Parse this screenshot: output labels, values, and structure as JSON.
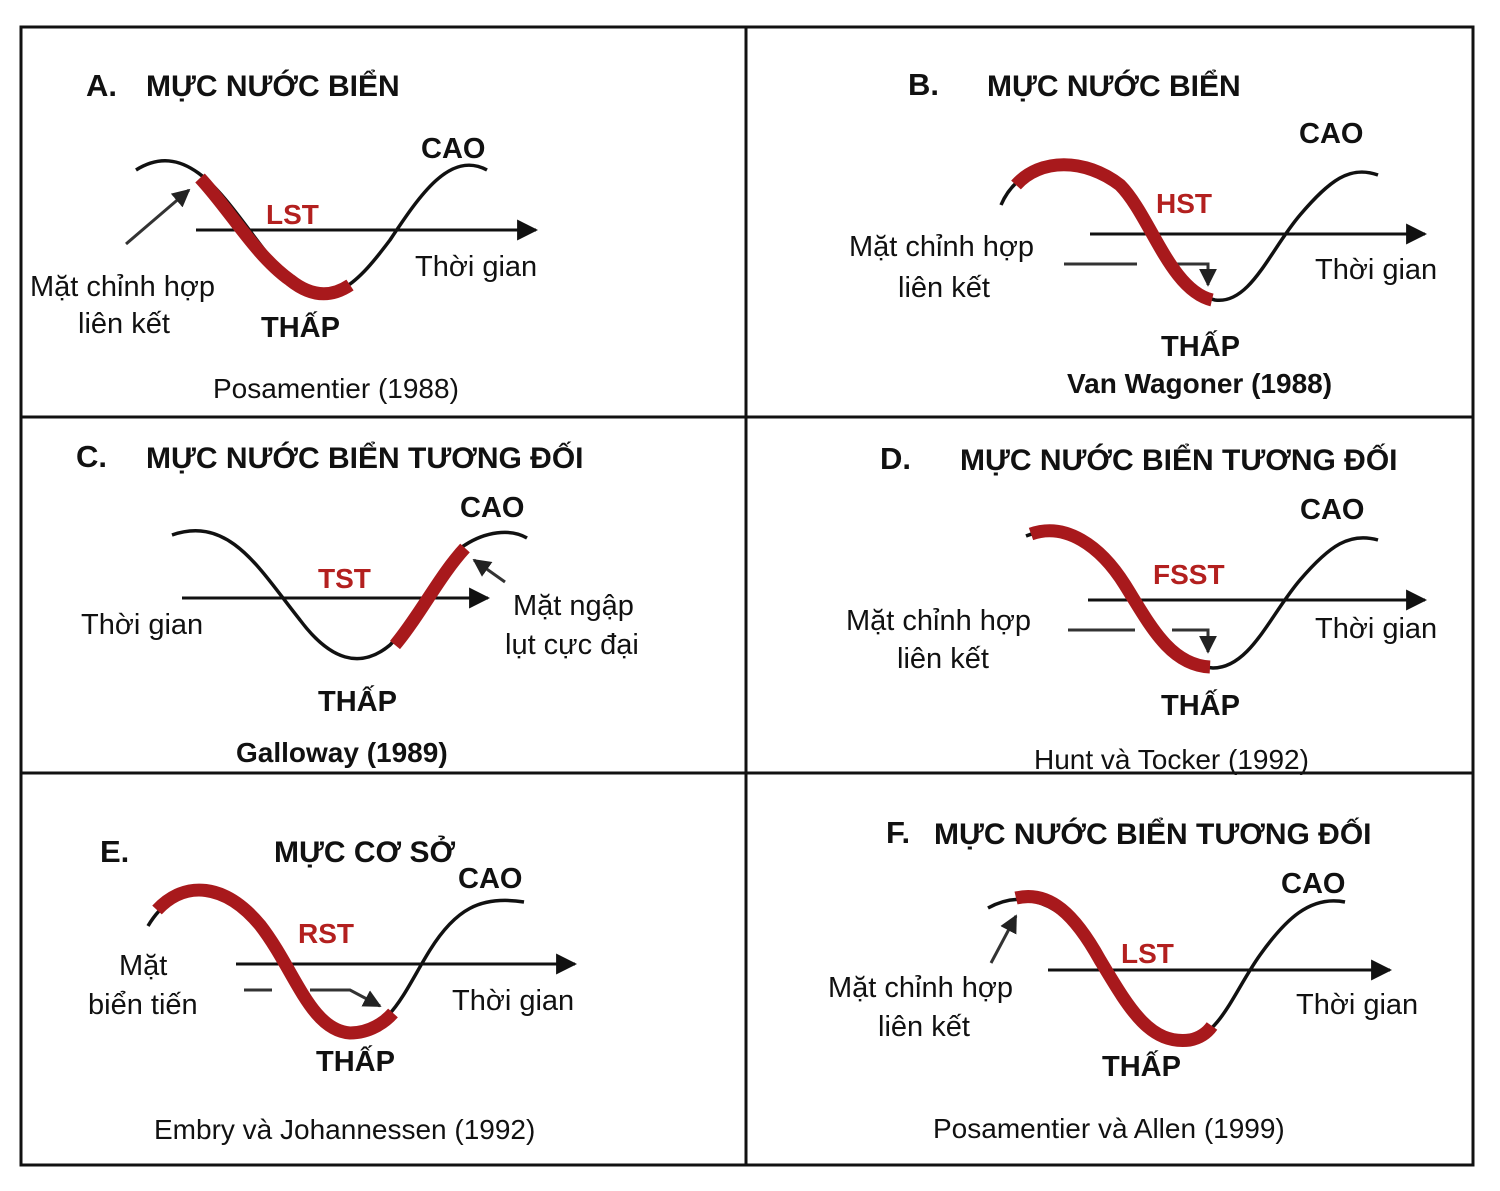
{
  "colors": {
    "tract": "#a8191c",
    "tract_label": "#b3201f",
    "curve": "#111111",
    "border": "#111111",
    "arrow": "#333333"
  },
  "panels": [
    {
      "id": "A",
      "letter": "A.",
      "heading": "MỰC NƯỚC BIỂN",
      "tract": "LST",
      "high": "CAO",
      "low": "THẤP",
      "time": "Thời gian",
      "surface": [
        "Mặt chỉnh hợp",
        "liên kết"
      ],
      "citation": "Posamentier (1988)"
    },
    {
      "id": "B",
      "letter": "B.",
      "heading": "MỰC NƯỚC BIỂN",
      "tract": "HST",
      "high": "CAO",
      "low": "THẤP",
      "time": "Thời gian",
      "surface": [
        "Mặt chỉnh hợp",
        "liên kết"
      ],
      "citation": "Van Wagoner (1988)"
    },
    {
      "id": "C",
      "letter": "C.",
      "heading": "MỰC NƯỚC BIỂN TƯƠNG ĐỐI",
      "tract": "TST",
      "high": "CAO",
      "low": "THẤP",
      "time": "Thời gian",
      "surface": [
        "Mặt ngập",
        "lụt cực đại"
      ],
      "citation": "Galloway (1989)"
    },
    {
      "id": "D",
      "letter": "D.",
      "heading": "MỰC NƯỚC BIỂN TƯƠNG ĐỐI",
      "tract": "FSST",
      "high": "CAO",
      "low": "THẤP",
      "time": "Thời gian",
      "surface": [
        "Mặt chỉnh hợp",
        "liên kết"
      ],
      "citation": "Hunt và Tocker (1992)"
    },
    {
      "id": "E",
      "letter": "E.",
      "heading": "MỰC CƠ SỞ",
      "tract": "RST",
      "high": "CAO",
      "low": "THẤP",
      "time": "Thời gian",
      "surface": [
        "Mặt",
        "biển tiến"
      ],
      "citation": "Embry và Johannessen (1992)"
    },
    {
      "id": "F",
      "letter": "F.",
      "heading": "MỰC NƯỚC BIỂN TƯƠNG ĐỐI",
      "tract": "LST",
      "high": "CAO",
      "low": "THẤP",
      "time": "Thời gian",
      "surface": [
        "Mặt chỉnh hợp",
        "liên kết"
      ],
      "citation": "Posamentier và Allen (1999)"
    }
  ]
}
